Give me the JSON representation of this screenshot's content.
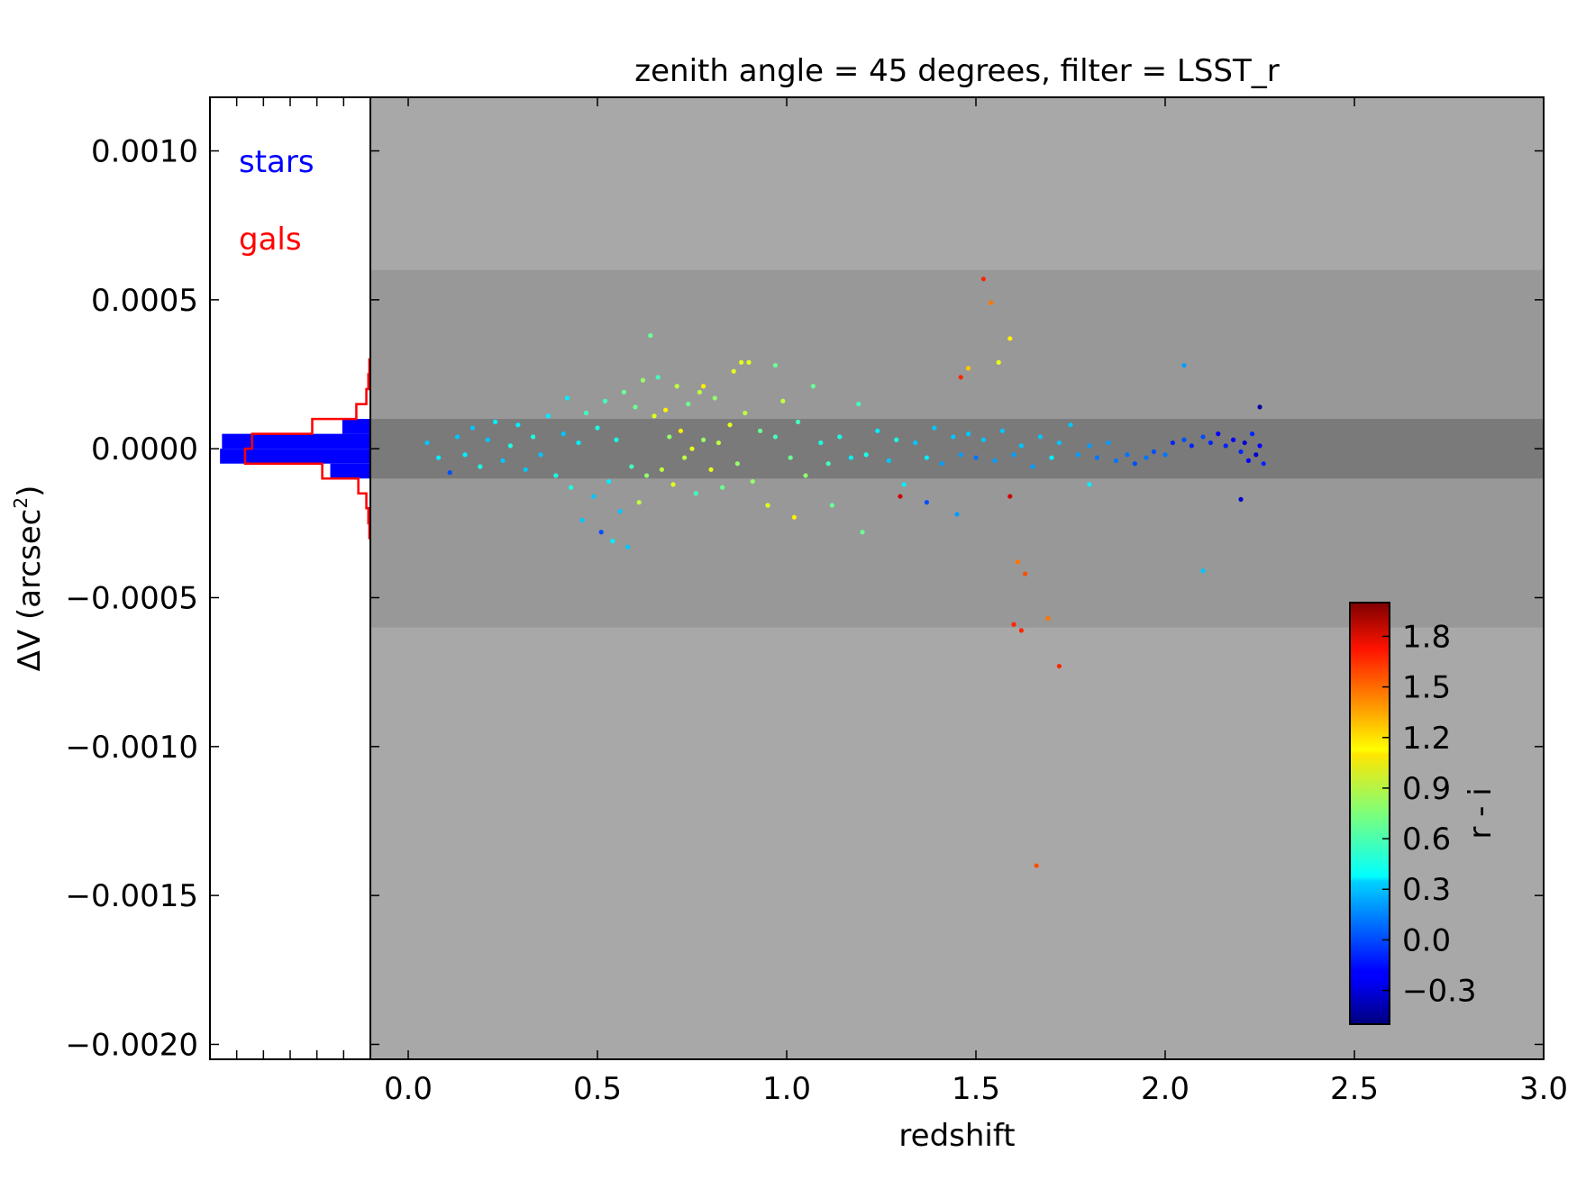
{
  "title": "zenith angle = 45 degrees, filter = LSST_r",
  "xlabel": "redshift",
  "ylabel_main": "ΔV (arcsec",
  "ylabel_sup": "2",
  "ylabel_close": ")",
  "colorbar_label": "r - i",
  "legend": {
    "stars": {
      "label": "stars",
      "color": "#0000ff"
    },
    "gals": {
      "label": "gals",
      "color": "#ff0000"
    }
  },
  "colors": {
    "outer_band": "#a8a8a8",
    "middle_band": "#989898",
    "inner_band": "#7a7a7a"
  },
  "chart_data": [
    {
      "type": "scatter",
      "panel": "main",
      "title": "zenith angle = 45 degrees, filter = LSST_r",
      "xlabel": "redshift",
      "ylabel": "ΔV (arcsec^2)",
      "xlim": [
        -0.1,
        3.0
      ],
      "ylim": [
        -0.00205,
        0.00118
      ],
      "x_ticks": [
        {
          "value": 0.0,
          "label": "0.0"
        },
        {
          "value": 0.5,
          "label": "0.5"
        },
        {
          "value": 1.0,
          "label": "1.0"
        },
        {
          "value": 1.5,
          "label": "1.5"
        },
        {
          "value": 2.0,
          "label": "2.0"
        },
        {
          "value": 2.5,
          "label": "2.5"
        },
        {
          "value": 3.0,
          "label": "3.0"
        }
      ],
      "y_ticks": [
        {
          "value": 0.001,
          "label": "0.0010"
        },
        {
          "value": 0.0005,
          "label": "0.0005"
        },
        {
          "value": 0.0,
          "label": "0.0000"
        },
        {
          "value": -0.0005,
          "label": "−0.0005"
        },
        {
          "value": -0.001,
          "label": "−0.0010"
        },
        {
          "value": -0.0015,
          "label": "−0.0015"
        },
        {
          "value": -0.002,
          "label": "−0.0020"
        }
      ],
      "bands": [
        {
          "ymin": -0.0006,
          "ymax": 0.0006
        },
        {
          "ymin": -0.0001,
          "ymax": 0.0001
        }
      ],
      "color_by": "r - i",
      "clim": [
        -0.5,
        2.0
      ],
      "points": [
        [
          0.05,
          2e-05,
          0.3
        ],
        [
          0.08,
          -3e-05,
          0.4
        ],
        [
          0.11,
          -8e-05,
          0.0
        ],
        [
          0.13,
          4e-05,
          0.3
        ],
        [
          0.15,
          -2e-05,
          0.4
        ],
        [
          0.17,
          7e-05,
          0.3
        ],
        [
          0.19,
          -6e-05,
          0.5
        ],
        [
          0.21,
          3e-05,
          0.3
        ],
        [
          0.23,
          9e-05,
          0.4
        ],
        [
          0.25,
          -4e-05,
          0.3
        ],
        [
          0.27,
          1e-05,
          0.5
        ],
        [
          0.29,
          8e-05,
          0.4
        ],
        [
          0.31,
          -7e-05,
          0.3
        ],
        [
          0.33,
          4e-05,
          0.5
        ],
        [
          0.35,
          -2e-05,
          0.3
        ],
        [
          0.37,
          0.00011,
          0.4
        ],
        [
          0.39,
          -9e-05,
          0.5
        ],
        [
          0.41,
          5e-05,
          0.3
        ],
        [
          0.42,
          0.00017,
          0.4
        ],
        [
          0.43,
          -0.00013,
          0.5
        ],
        [
          0.45,
          2e-05,
          0.4
        ],
        [
          0.46,
          -0.00024,
          0.3
        ],
        [
          0.47,
          0.00012,
          0.6
        ],
        [
          0.49,
          -0.00016,
          0.3
        ],
        [
          0.5,
          7e-05,
          0.5
        ],
        [
          0.51,
          -0.00028,
          0.0
        ],
        [
          0.52,
          0.00016,
          0.6
        ],
        [
          0.53,
          -0.00011,
          0.4
        ],
        [
          0.54,
          -0.00031,
          0.4
        ],
        [
          0.55,
          3e-05,
          0.5
        ],
        [
          0.56,
          -0.00021,
          0.3
        ],
        [
          0.57,
          0.00019,
          0.7
        ],
        [
          0.58,
          -0.00033,
          0.3
        ],
        [
          0.59,
          -6e-05,
          0.6
        ],
        [
          0.6,
          0.00014,
          0.7
        ],
        [
          0.61,
          -0.00018,
          0.9
        ],
        [
          0.62,
          0.00023,
          0.8
        ],
        [
          0.63,
          -9e-05,
          0.8
        ],
        [
          0.64,
          0.00038,
          0.7
        ],
        [
          0.65,
          0.00011,
          1.0
        ],
        [
          0.66,
          0.00024,
          0.6
        ],
        [
          0.67,
          -7e-05,
          0.9
        ],
        [
          0.68,
          0.00013,
          1.1
        ],
        [
          0.69,
          4e-05,
          0.8
        ],
        [
          0.7,
          -0.00012,
          1.0
        ],
        [
          0.71,
          0.00021,
          0.9
        ],
        [
          0.72,
          6e-05,
          1.1
        ],
        [
          0.73,
          -3e-05,
          0.9
        ],
        [
          0.74,
          0.00015,
          0.7
        ],
        [
          0.75,
          0.0,
          1.0
        ],
        [
          0.76,
          -0.00015,
          0.6
        ],
        [
          0.77,
          0.00019,
          0.9
        ],
        [
          0.78,
          3e-05,
          0.8
        ],
        [
          0.8,
          -7e-05,
          1.0
        ],
        [
          0.81,
          0.00017,
          0.8
        ],
        [
          0.82,
          2e-05,
          0.9
        ],
        [
          0.83,
          -0.00013,
          0.7
        ],
        [
          0.85,
          8e-05,
          1.0
        ],
        [
          0.86,
          0.00026,
          1.0
        ],
        [
          0.87,
          -5e-05,
          0.8
        ],
        [
          0.89,
          0.00012,
          0.9
        ],
        [
          0.9,
          0.00029,
          1.0
        ],
        [
          0.91,
          -0.00011,
          0.8
        ],
        [
          0.93,
          6e-05,
          0.7
        ],
        [
          0.95,
          -0.00019,
          1.0
        ],
        [
          0.97,
          4e-05,
          0.6
        ],
        [
          0.99,
          0.00016,
          0.9
        ],
        [
          1.01,
          -3e-05,
          0.7
        ],
        [
          1.03,
          9e-05,
          0.6
        ],
        [
          1.05,
          -9e-05,
          0.8
        ],
        [
          1.07,
          0.00021,
          0.7
        ],
        [
          1.09,
          2e-05,
          0.5
        ],
        [
          1.11,
          -5e-05,
          0.6
        ],
        [
          1.14,
          4e-05,
          0.5
        ],
        [
          1.17,
          -3e-05,
          0.4
        ],
        [
          1.19,
          0.00015,
          0.6
        ],
        [
          1.21,
          -2e-05,
          0.5
        ],
        [
          1.24,
          6e-05,
          0.4
        ],
        [
          1.27,
          -4e-05,
          0.3
        ],
        [
          1.29,
          3e-05,
          0.5
        ],
        [
          1.31,
          -0.00012,
          0.4
        ],
        [
          1.34,
          2e-05,
          0.3
        ],
        [
          1.37,
          -3e-05,
          0.4
        ],
        [
          1.39,
          7e-05,
          0.3
        ],
        [
          1.41,
          -5e-05,
          0.2
        ],
        [
          1.44,
          4e-05,
          0.3
        ],
        [
          1.46,
          -2e-05,
          0.2
        ],
        [
          1.48,
          5e-05,
          0.3
        ],
        [
          1.5,
          -3e-05,
          0.1
        ],
        [
          1.52,
          3e-05,
          0.3
        ],
        [
          1.55,
          -4e-05,
          0.2
        ],
        [
          1.57,
          6e-05,
          0.3
        ],
        [
          1.6,
          -2e-05,
          0.2
        ],
        [
          1.62,
          1e-05,
          0.3
        ],
        [
          1.65,
          -6e-05,
          0.2
        ],
        [
          1.67,
          4e-05,
          0.3
        ],
        [
          1.7,
          -3e-05,
          0.4
        ],
        [
          1.72,
          2e-05,
          0.3
        ],
        [
          1.75,
          8e-05,
          0.3
        ],
        [
          1.77,
          -2e-05,
          0.2
        ],
        [
          1.8,
          1e-05,
          0.2
        ],
        [
          1.82,
          -3e-05,
          0.1
        ],
        [
          1.85,
          2e-05,
          0.2
        ],
        [
          1.87,
          -4e-05,
          0.1
        ],
        [
          1.9,
          -2e-05,
          0.1
        ],
        [
          1.92,
          -5e-05,
          0.0
        ],
        [
          1.95,
          -3e-05,
          0.1
        ],
        [
          1.97,
          -1e-05,
          0.0
        ],
        [
          2.0,
          -2e-05,
          0.1
        ],
        [
          2.02,
          2e-05,
          -0.1
        ],
        [
          2.05,
          3e-05,
          0.0
        ],
        [
          2.07,
          1e-05,
          -0.1
        ],
        [
          2.1,
          4e-05,
          0.0
        ],
        [
          2.12,
          2e-05,
          -0.1
        ],
        [
          2.14,
          5e-05,
          -0.2
        ],
        [
          2.16,
          1e-05,
          -0.1
        ],
        [
          2.18,
          3e-05,
          -0.2
        ],
        [
          2.2,
          -1e-05,
          -0.1
        ],
        [
          2.21,
          2e-05,
          -0.3
        ],
        [
          2.22,
          -4e-05,
          -0.2
        ],
        [
          2.23,
          5e-05,
          -0.1
        ],
        [
          2.24,
          -2e-05,
          -0.3
        ],
        [
          2.25,
          1e-05,
          -0.2
        ],
        [
          2.26,
          -5e-05,
          -0.1
        ],
        [
          1.52,
          0.00057,
          1.6
        ],
        [
          1.54,
          0.00049,
          1.4
        ],
        [
          1.59,
          0.00037,
          1.1
        ],
        [
          1.48,
          0.00027,
          1.2
        ],
        [
          1.56,
          0.00029,
          1.0
        ],
        [
          1.46,
          0.00024,
          1.6
        ],
        [
          1.3,
          -0.00016,
          1.8
        ],
        [
          1.59,
          -0.00016,
          1.8
        ],
        [
          1.6,
          -0.00059,
          1.6
        ],
        [
          1.62,
          -0.00061,
          1.6
        ],
        [
          1.63,
          -0.00042,
          1.5
        ],
        [
          1.61,
          -0.00038,
          1.4
        ],
        [
          1.69,
          -0.00057,
          1.4
        ],
        [
          1.72,
          -0.00073,
          1.6
        ],
        [
          1.66,
          -0.0014,
          1.5
        ],
        [
          2.05,
          0.00028,
          0.2
        ],
        [
          2.1,
          -0.00041,
          0.3
        ],
        [
          2.25,
          0.00014,
          -0.4
        ],
        [
          2.2,
          -0.00017,
          -0.3
        ],
        [
          1.2,
          -0.00028,
          0.7
        ],
        [
          0.97,
          0.00028,
          0.7
        ],
        [
          0.88,
          0.00029,
          1.0
        ],
        [
          0.78,
          0.00021,
          1.1
        ],
        [
          1.02,
          -0.00023,
          1.1
        ],
        [
          1.45,
          -0.00022,
          0.2
        ],
        [
          1.8,
          -0.00012,
          0.4
        ],
        [
          1.37,
          -0.00018,
          0.0
        ],
        [
          1.12,
          -0.00019,
          0.7
        ]
      ]
    },
    {
      "type": "histogram",
      "panel": "side",
      "orientation": "horizontal",
      "series": [
        {
          "name": "stars",
          "style": "filled",
          "bins": [
            {
              "y_low": -5e-05,
              "y_high": 0.0,
              "count": 150
            },
            {
              "y_low": 0.0,
              "y_high": 5e-05,
              "count": 148
            },
            {
              "y_low": -0.0001,
              "y_high": -5e-05,
              "count": 40
            },
            {
              "y_low": 5e-05,
              "y_high": 0.0001,
              "count": 28
            }
          ]
        },
        {
          "name": "gals",
          "style": "step",
          "bins": [
            {
              "y_low": -0.0003,
              "y_high": -0.00025,
              "count": 1
            },
            {
              "y_low": -0.00025,
              "y_high": -0.0002,
              "count": 2
            },
            {
              "y_low": -0.0002,
              "y_high": -0.00015,
              "count": 4
            },
            {
              "y_low": -0.00015,
              "y_high": -0.0001,
              "count": 12
            },
            {
              "y_low": -0.0001,
              "y_high": -5e-05,
              "count": 48
            },
            {
              "y_low": -5e-05,
              "y_high": 0.0,
              "count": 125
            },
            {
              "y_low": 0.0,
              "y_high": 5e-05,
              "count": 118
            },
            {
              "y_low": 5e-05,
              "y_high": 0.0001,
              "count": 58
            },
            {
              "y_low": 0.0001,
              "y_high": 0.00015,
              "count": 14
            },
            {
              "y_low": 0.00015,
              "y_high": 0.0002,
              "count": 4
            },
            {
              "y_low": 0.0002,
              "y_high": 0.00025,
              "count": 2
            },
            {
              "y_low": 0.00025,
              "y_high": 0.0003,
              "count": 1
            }
          ]
        }
      ]
    },
    {
      "type": "colorbar",
      "label": "r - i",
      "range": [
        -0.5,
        2.0
      ],
      "ticks": [
        {
          "value": -0.3,
          "label": "−0.3"
        },
        {
          "value": 0.0,
          "label": "0.0"
        },
        {
          "value": 0.3,
          "label": "0.3"
        },
        {
          "value": 0.6,
          "label": "0.6"
        },
        {
          "value": 0.9,
          "label": "0.9"
        },
        {
          "value": 1.2,
          "label": "1.2"
        },
        {
          "value": 1.5,
          "label": "1.5"
        },
        {
          "value": 1.8,
          "label": "1.8"
        }
      ]
    }
  ]
}
